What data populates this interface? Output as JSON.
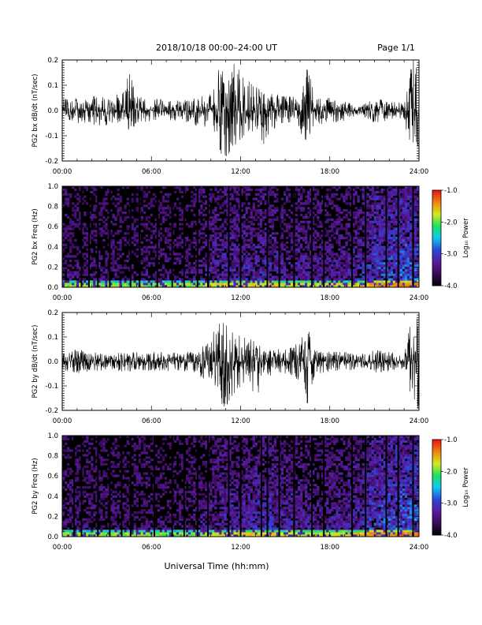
{
  "header": {
    "title": "2018/10/18   00:00–24:00 UT",
    "page": "Page 1/1"
  },
  "footer": {
    "xlabel": "Universal Time (hh:mm)"
  },
  "colorbar": {
    "label": "Log₁₀ Power",
    "range": [
      -4.0,
      -1.0
    ],
    "ticks": [
      "-1.0",
      "-2.0",
      "-3.0",
      "-4.0"
    ],
    "tick_values": [
      -1.0,
      -2.0,
      -3.0,
      -4.0
    ],
    "colors": [
      "#000000",
      "#3a0a5a",
      "#5a1aa0",
      "#2848d8",
      "#10c8f0",
      "#20e060",
      "#d8e820",
      "#f08010",
      "#e81010"
    ]
  },
  "chart_data": [
    {
      "type": "line",
      "ylabel": "PG2 bx dB/dt (nT/sec)",
      "xlim": [
        0,
        24
      ],
      "ylim": [
        -0.2,
        0.2
      ],
      "xticks": [
        "00:00",
        "06:00",
        "12:00",
        "18:00",
        "24:00"
      ],
      "xtick_values": [
        0,
        6,
        12,
        18,
        24
      ],
      "yticks": [
        "0.2",
        "0.1",
        "0.0",
        "-0.1",
        "-0.2"
      ],
      "ytick_values": [
        0.2,
        0.1,
        0.0,
        -0.1,
        -0.2
      ],
      "envelope": {
        "x": [
          0,
          1,
          2,
          3,
          4,
          4.5,
          5,
          6,
          7,
          8,
          9,
          10,
          10.5,
          11,
          11.5,
          12,
          12.5,
          13,
          13.5,
          14,
          15,
          16,
          16.5,
          17,
          18,
          19,
          20,
          21,
          22,
          23,
          23.5,
          24
        ],
        "y_max": [
          0.05,
          0.05,
          0.06,
          0.05,
          0.07,
          0.16,
          0.06,
          0.05,
          0.04,
          0.04,
          0.05,
          0.07,
          0.2,
          0.14,
          0.2,
          0.16,
          0.17,
          0.1,
          0.08,
          0.07,
          0.06,
          0.05,
          0.2,
          0.05,
          0.05,
          0.04,
          0.02,
          0.05,
          0.04,
          0.03,
          0.2,
          0.2
        ],
        "y_min": [
          -0.04,
          -0.05,
          -0.06,
          -0.06,
          -0.05,
          -0.08,
          -0.06,
          -0.04,
          -0.04,
          -0.04,
          -0.06,
          -0.07,
          -0.18,
          -0.2,
          -0.2,
          -0.12,
          -0.1,
          -0.09,
          -0.14,
          -0.08,
          -0.05,
          -0.08,
          -0.16,
          -0.05,
          -0.06,
          -0.04,
          -0.02,
          -0.05,
          -0.04,
          -0.03,
          -0.2,
          -0.2
        ]
      }
    },
    {
      "type": "heatmap",
      "ylabel": "PG2 bx Freq (Hz)",
      "xlim": [
        0,
        24
      ],
      "ylim": [
        0,
        1.0
      ],
      "xticks": [
        "00:00",
        "06:00",
        "12:00",
        "18:00",
        "24:00"
      ],
      "xtick_values": [
        0,
        6,
        12,
        18,
        24
      ],
      "yticks": [
        "1.0",
        "0.8",
        "0.6",
        "0.4",
        "0.2",
        "0.0"
      ],
      "ytick_values": [
        1.0,
        0.8,
        0.6,
        0.4,
        0.2,
        0.0
      ],
      "activity": {
        "x": [
          0,
          2,
          4,
          6,
          8,
          10,
          11,
          12,
          13,
          14,
          15,
          16,
          17,
          18,
          19,
          20,
          21,
          22,
          23,
          24
        ],
        "level": [
          0.3,
          0.3,
          0.25,
          0.25,
          0.25,
          0.45,
          0.55,
          0.55,
          0.55,
          0.6,
          0.45,
          0.5,
          0.45,
          0.45,
          0.5,
          0.6,
          0.8,
          0.85,
          0.9,
          0.95
        ]
      },
      "vertical_gaps_hours": [
        1.3,
        1.8,
        2.4,
        3.2,
        4.6,
        5.2,
        6.4,
        7.4,
        8.2,
        9.1,
        9.8,
        11.2,
        12.0,
        13.8,
        14.6,
        15.6,
        16.8,
        17.6,
        19.5,
        20.4,
        21.8,
        22.6,
        23.6
      ]
    },
    {
      "type": "line",
      "ylabel": "PG2 by dB/dt (nT/sec)",
      "xlim": [
        0,
        24
      ],
      "ylim": [
        -0.2,
        0.2
      ],
      "xticks": [
        "00:00",
        "06:00",
        "12:00",
        "18:00",
        "24:00"
      ],
      "xtick_values": [
        0,
        6,
        12,
        18,
        24
      ],
      "yticks": [
        "0.2",
        "0.1",
        "0.0",
        "-0.1",
        "-0.2"
      ],
      "ytick_values": [
        0.2,
        0.1,
        0.0,
        -0.1,
        -0.2
      ],
      "envelope": {
        "x": [
          0,
          1,
          2,
          3,
          4,
          5,
          6,
          7,
          8,
          9,
          10,
          10.5,
          11,
          11.5,
          12,
          12.5,
          13,
          13.5,
          14,
          15,
          16,
          16.5,
          17,
          18,
          19,
          20,
          21,
          22,
          23,
          23.5,
          24
        ],
        "y_max": [
          0.04,
          0.05,
          0.04,
          0.03,
          0.04,
          0.04,
          0.04,
          0.04,
          0.04,
          0.05,
          0.08,
          0.2,
          0.2,
          0.14,
          0.12,
          0.1,
          0.09,
          0.05,
          0.05,
          0.05,
          0.08,
          0.2,
          0.06,
          0.04,
          0.04,
          0.03,
          0.05,
          0.04,
          0.03,
          0.2,
          0.2
        ],
        "y_min": [
          -0.04,
          -0.05,
          -0.04,
          -0.04,
          -0.05,
          -0.04,
          -0.04,
          -0.04,
          -0.04,
          -0.05,
          -0.1,
          -0.16,
          -0.2,
          -0.14,
          -0.1,
          -0.09,
          -0.18,
          -0.06,
          -0.06,
          -0.05,
          -0.08,
          -0.18,
          -0.06,
          -0.04,
          -0.04,
          -0.03,
          -0.05,
          -0.04,
          -0.03,
          -0.2,
          -0.2
        ]
      }
    },
    {
      "type": "heatmap",
      "ylabel": "PG2 by Freq (Hz)",
      "xlim": [
        0,
        24
      ],
      "ylim": [
        0,
        1.0
      ],
      "xticks": [
        "00:00",
        "06:00",
        "12:00",
        "18:00",
        "24:00"
      ],
      "xtick_values": [
        0,
        6,
        12,
        18,
        24
      ],
      "yticks": [
        "1.0",
        "0.8",
        "0.6",
        "0.4",
        "0.2",
        "0.0"
      ],
      "ytick_values": [
        1.0,
        0.8,
        0.6,
        0.4,
        0.2,
        0.0
      ],
      "activity": {
        "x": [
          0,
          2,
          4,
          6,
          8,
          10,
          11,
          12,
          13,
          14,
          15,
          16,
          17,
          18,
          19,
          20,
          21,
          22,
          23,
          24
        ],
        "level": [
          0.3,
          0.3,
          0.3,
          0.25,
          0.25,
          0.45,
          0.55,
          0.55,
          0.6,
          0.65,
          0.5,
          0.5,
          0.45,
          0.45,
          0.5,
          0.65,
          0.85,
          0.85,
          0.9,
          0.95
        ]
      },
      "vertical_gaps_hours": [
        0.8,
        1.3,
        2.4,
        3.2,
        4.0,
        4.6,
        6.2,
        7.4,
        8.2,
        9.1,
        9.8,
        11.2,
        12.0,
        13.4,
        13.8,
        14.6,
        15.6,
        16.8,
        17.6,
        19.5,
        20.4,
        21.8,
        22.6,
        23.6
      ]
    }
  ]
}
